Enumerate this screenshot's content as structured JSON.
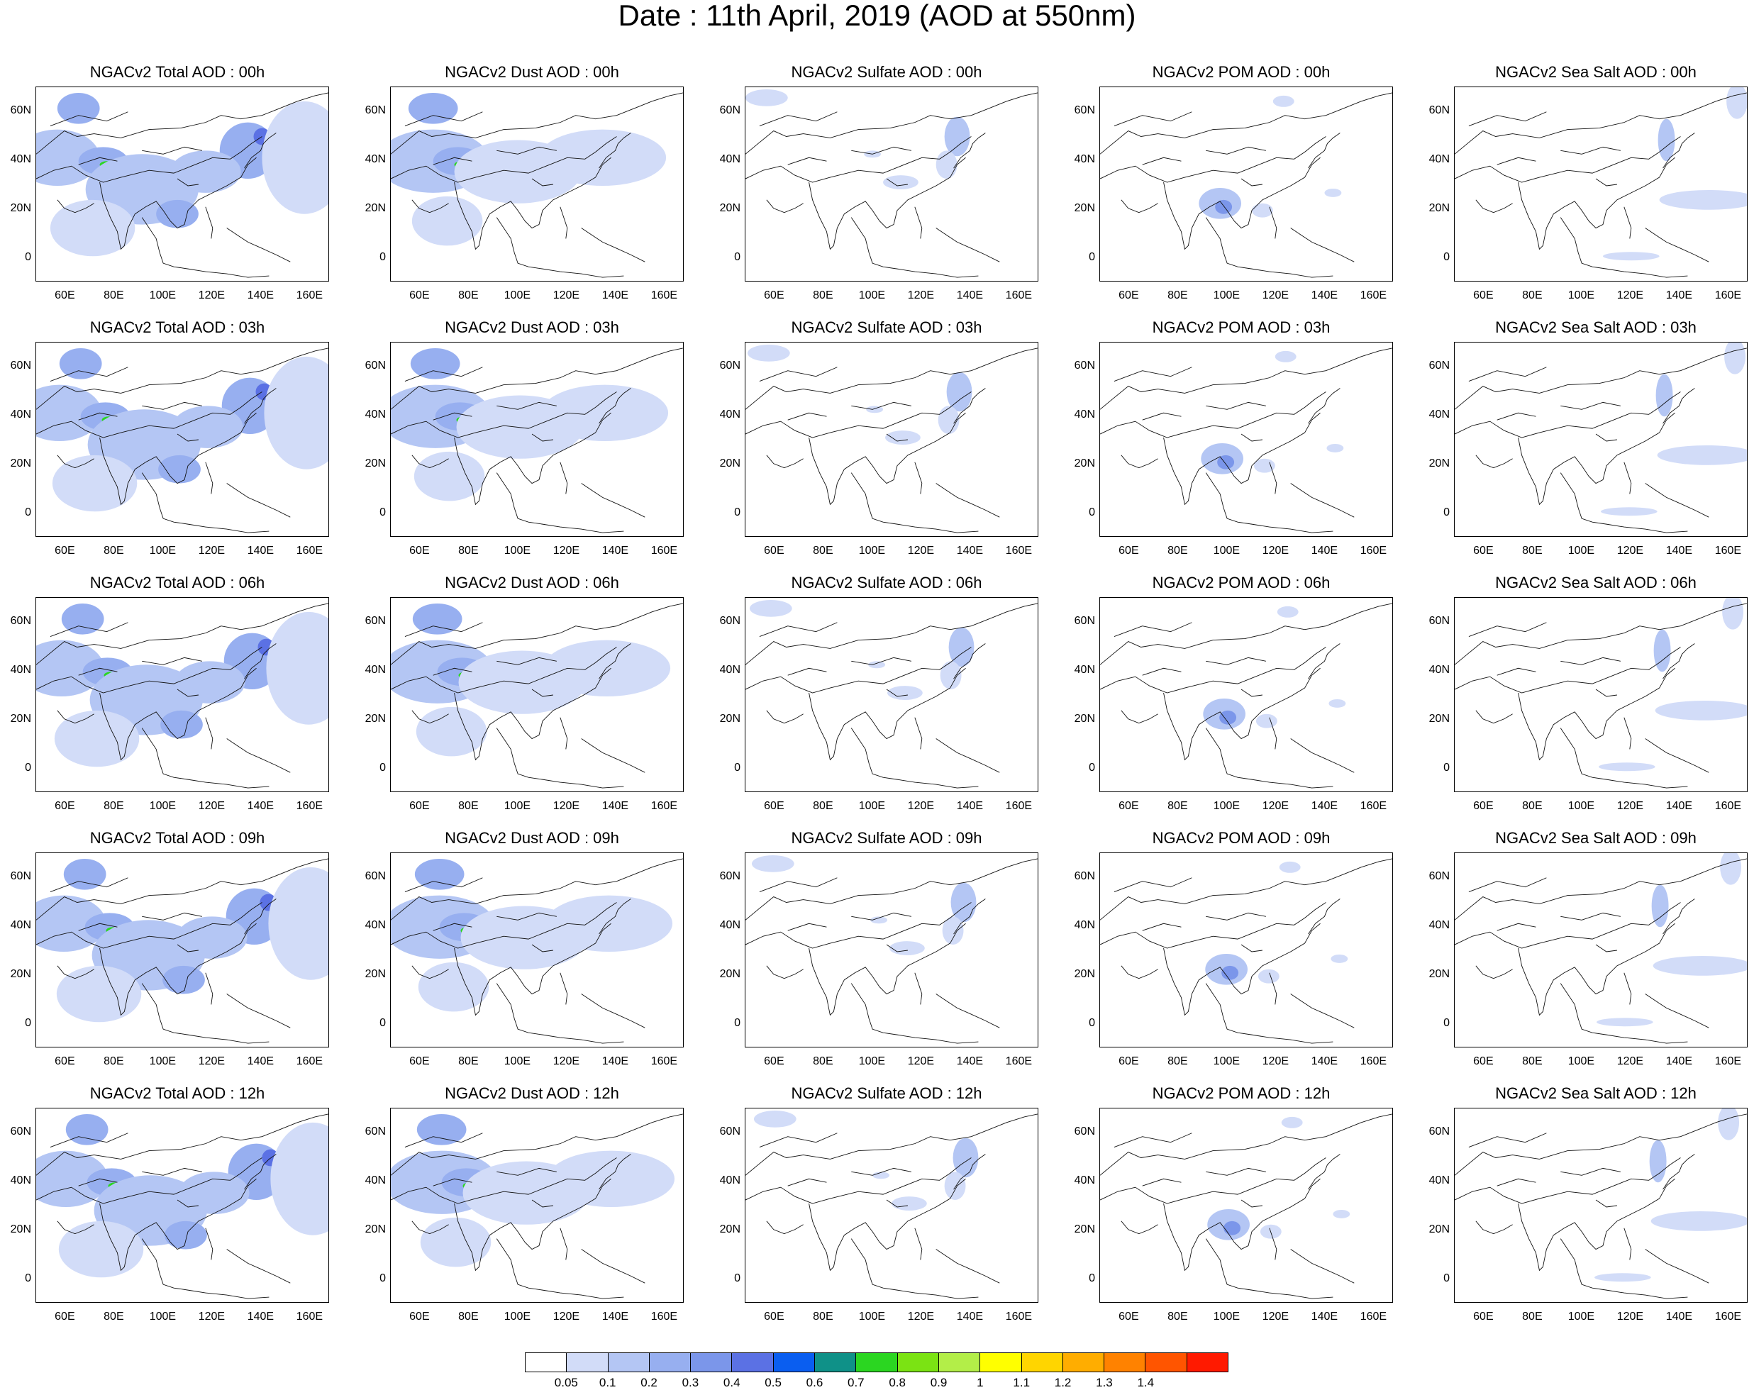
{
  "title": "Date : 11th April, 2019 (AOD at 550nm)",
  "panels": [
    [
      "NGACv2 Total AOD : 00h",
      "NGACv2 Dust AOD : 00h",
      "NGACv2 Sulfate AOD : 00h",
      "NGACv2 POM AOD : 00h",
      "NGACv2 Sea Salt AOD : 00h"
    ],
    [
      "NGACv2 Total AOD : 03h",
      "NGACv2 Dust AOD : 03h",
      "NGACv2 Sulfate AOD : 03h",
      "NGACv2 POM AOD : 03h",
      "NGACv2 Sea Salt AOD : 03h"
    ],
    [
      "NGACv2 Total AOD : 06h",
      "NGACv2 Dust AOD : 06h",
      "NGACv2 Sulfate AOD : 06h",
      "NGACv2 POM AOD : 06h",
      "NGACv2 Sea Salt AOD : 06h"
    ],
    [
      "NGACv2 Total AOD : 09h",
      "NGACv2 Dust AOD : 09h",
      "NGACv2 Sulfate AOD : 09h",
      "NGACv2 POM AOD : 09h",
      "NGACv2 Sea Salt  AOD : 09h"
    ],
    [
      "NGACv2 Total AOD  : 12h",
      "NGACv2 Dust AOD : 12h",
      "NGACv2 Sulfate AOD : 12h",
      "NGACv2 POM  AOD : 12h",
      "NGACv2 Sea Salt  AOD : 12h"
    ]
  ],
  "lat_labels": [
    "60N",
    "40N",
    "20N",
    "0"
  ],
  "lon_labels": [
    "60E",
    "80E",
    "100E",
    "120E",
    "140E",
    "160E"
  ],
  "colorbar": {
    "colors": [
      "#ffffff",
      "#d2dcf8",
      "#b4c6f4",
      "#97aff0",
      "#7b96ea",
      "#5b71e4",
      "#0a5ef0",
      "#0f9188",
      "#2bd621",
      "#7be313",
      "#b3ee48",
      "#ffff00",
      "#ffd500",
      "#ffad00",
      "#ff8200",
      "#ff5500",
      "#ff1a00"
    ],
    "labels": [
      "0.05",
      "0.1",
      "0.2",
      "0.3",
      "0.4",
      "0.5",
      "0.6",
      "0.7",
      "0.8",
      "0.9",
      "1",
      "1.1",
      "1.2",
      "1.3",
      "1.4"
    ]
  }
}
